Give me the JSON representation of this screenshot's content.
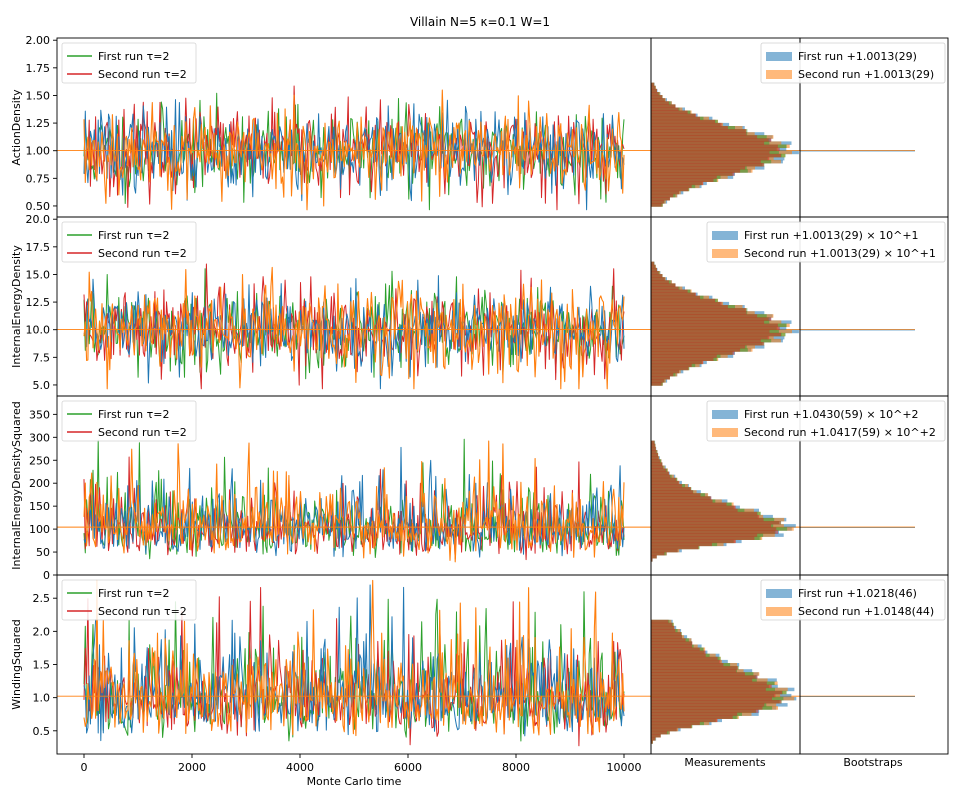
{
  "chart_data": {
    "type": "line",
    "title": "Villain N=5 κ=0.1 W=1",
    "xlabel": "Monte Carlo time",
    "xlim": [
      -500,
      10500
    ],
    "xticks": [
      0,
      2000,
      4000,
      6000,
      8000,
      10000
    ],
    "column_labels": [
      "Measurements",
      "Bootstraps"
    ],
    "n_samples": 10000,
    "series_colors": {
      "first_trace": "#2ca02c",
      "second_trace": "#d62728",
      "first_hist": "#1f77b4",
      "second_hist": "#ff7f0e",
      "trace_overlay_1": "#1f77b4",
      "trace_overlay_2": "#ff7f0e"
    },
    "panels": [
      {
        "ylabel": "ActionDensity",
        "ylim": [
          0.4,
          2.02
        ],
        "yticks": [
          0.5,
          0.75,
          1.0,
          1.25,
          1.5,
          1.75,
          2.0
        ],
        "ytick_labels": [
          "0.50",
          "0.75",
          "1.00",
          "1.25",
          "1.50",
          "1.75",
          "2.00"
        ],
        "mean": 1.0013,
        "spread": 0.2,
        "trace_legend": [
          "First run τ=2",
          "Second run τ=2"
        ],
        "hist_legend": [
          "First run +1.0013(29)",
          "Second run +1.0013(29)"
        ],
        "hist_legend_pos": "top-right"
      },
      {
        "ylabel": "InternalEnergyDensity",
        "ylim": [
          4.0,
          20.2
        ],
        "yticks": [
          5.0,
          7.5,
          10.0,
          12.5,
          15.0,
          17.5,
          20.0
        ],
        "ytick_labels": [
          "5.0",
          "7.5",
          "10.0",
          "12.5",
          "15.0",
          "17.5",
          "20.0"
        ],
        "mean": 10.013,
        "spread": 2.0,
        "trace_legend": [
          "First run τ=2",
          "Second run τ=2"
        ],
        "hist_legend": [
          "First run +1.0013(29) × 10^+1",
          "Second run +1.0013(29) × 10^+1"
        ],
        "hist_legend_pos": "top-right"
      },
      {
        "ylabel": "InternalEnergyDensitySquared",
        "ylim": [
          0,
          390
        ],
        "yticks": [
          0,
          50,
          100,
          150,
          200,
          250,
          300,
          350
        ],
        "ytick_labels": [
          "0",
          "50",
          "100",
          "150",
          "200",
          "250",
          "300",
          "350"
        ],
        "mean": 104.3,
        "spread": 40,
        "trace_legend": [
          "First run τ=2",
          "Second run τ=2"
        ],
        "hist_legend": [
          "First run +1.0430(59) × 10^+2",
          "Second run +1.0417(59) × 10^+2"
        ],
        "hist_legend_pos": "top-right"
      },
      {
        "ylabel": "WindingSquared",
        "ylim": [
          0.15,
          2.85
        ],
        "yticks": [
          0.5,
          1.0,
          1.5,
          2.0,
          2.5
        ],
        "ytick_labels": [
          "0.5",
          "1.0",
          "1.5",
          "2.0",
          "2.5"
        ],
        "mean": 1.0218,
        "spread": 0.37,
        "trace_legend": [
          "First run τ=2",
          "Second run τ=2"
        ],
        "hist_legend": [
          "First run +1.0218(46)",
          "Second run +1.0148(44)"
        ],
        "hist_legend_pos": "top-right"
      }
    ]
  }
}
